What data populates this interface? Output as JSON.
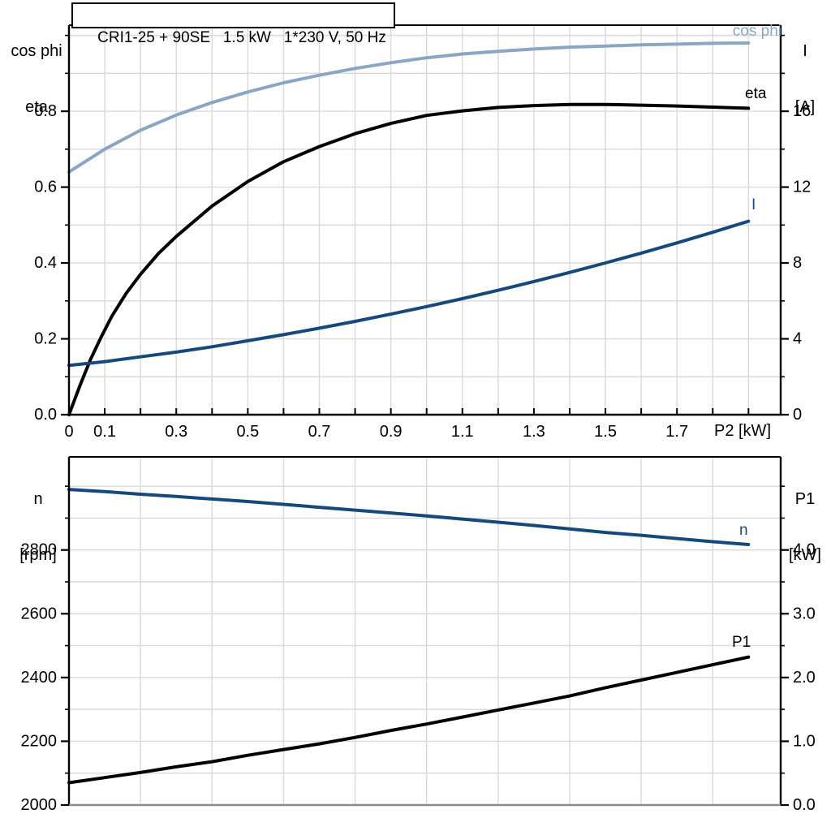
{
  "style": {
    "background": "#FFFFFF",
    "grid": "#D9D9D9",
    "axis": "#000000",
    "frame_bottom_gray": "#8D8D8D",
    "light_blue": "#8AA6C3",
    "dark_blue": "#16497B",
    "black": "#000000"
  },
  "corner_labels": {
    "c1_left": [
      "cos phi",
      "eta"
    ],
    "c1_right": [
      "I",
      "[A]"
    ],
    "c2_left": [
      "n",
      "[rpm]"
    ],
    "c2_right": [
      "P1",
      "[kW]"
    ]
  },
  "chart_data": [
    {
      "type": "line",
      "title": "CRI1-25 + 90SE   1.5 kW   1*230 V, 50 Hz",
      "x_axis": {
        "label": "P2 [kW]",
        "range": [
          0,
          1.99
        ],
        "grid_step": 0.1,
        "tick_step": 0.1,
        "ticks": {
          "values": [
            0,
            0.1,
            0.3,
            0.5,
            0.7,
            0.9,
            1.1,
            1.3,
            1.5,
            1.7
          ],
          "labels": [
            "0",
            "0.1",
            "0.3",
            "0.5",
            "0.7",
            "0.9",
            "1.1",
            "1.3",
            "1.5",
            "1.7"
          ]
        }
      },
      "y_left": {
        "label": "cos phi / eta",
        "range": [
          0,
          1.027
        ],
        "grid_step": 0.1,
        "minor_step": 0.1,
        "ticks": {
          "values": [
            0,
            0.2,
            0.4,
            0.6,
            0.8
          ],
          "labels": [
            "0.0",
            "0.2",
            "0.4",
            "0.6",
            "0.8"
          ]
        }
      },
      "y_right": {
        "label": "I [A]",
        "range": [
          0,
          20.54
        ],
        "minor_step": 2,
        "ticks": {
          "values": [
            0,
            4,
            8,
            12,
            16
          ],
          "labels": [
            "0",
            "4",
            "8",
            "12",
            "16"
          ]
        }
      },
      "series": [
        {
          "name": "cos phi",
          "axis": "left",
          "color": "#8AA6C3",
          "x": [
            0,
            0.1,
            0.2,
            0.3,
            0.4,
            0.5,
            0.6,
            0.7,
            0.8,
            0.9,
            1.0,
            1.1,
            1.2,
            1.3,
            1.4,
            1.5,
            1.6,
            1.7,
            1.8,
            1.9
          ],
          "y": [
            0.64,
            0.7,
            0.75,
            0.79,
            0.823,
            0.851,
            0.875,
            0.895,
            0.913,
            0.928,
            0.941,
            0.951,
            0.958,
            0.964,
            0.969,
            0.972,
            0.975,
            0.977,
            0.979,
            0.98
          ]
        },
        {
          "name": "eta",
          "axis": "left",
          "color": "#000000",
          "x": [
            0,
            0.03,
            0.06,
            0.09,
            0.12,
            0.16,
            0.2,
            0.25,
            0.3,
            0.4,
            0.5,
            0.6,
            0.7,
            0.8,
            0.9,
            1.0,
            1.1,
            1.2,
            1.3,
            1.4,
            1.5,
            1.6,
            1.7,
            1.8,
            1.9
          ],
          "y": [
            0,
            0.075,
            0.145,
            0.205,
            0.26,
            0.32,
            0.37,
            0.425,
            0.47,
            0.55,
            0.615,
            0.667,
            0.707,
            0.741,
            0.768,
            0.789,
            0.801,
            0.81,
            0.815,
            0.818,
            0.818,
            0.816,
            0.814,
            0.811,
            0.808
          ]
        },
        {
          "name": "I",
          "axis": "right",
          "color": "#16497B",
          "x": [
            0,
            0.1,
            0.2,
            0.3,
            0.4,
            0.5,
            0.6,
            0.7,
            0.8,
            0.9,
            1.0,
            1.1,
            1.2,
            1.3,
            1.4,
            1.5,
            1.6,
            1.7,
            1.8,
            1.9
          ],
          "y": [
            2.6,
            2.8,
            3.05,
            3.3,
            3.58,
            3.9,
            4.22,
            4.56,
            4.92,
            5.3,
            5.7,
            6.12,
            6.56,
            7.02,
            7.5,
            8.0,
            8.52,
            9.06,
            9.62,
            10.2
          ]
        }
      ]
    },
    {
      "type": "line",
      "title": "",
      "x_axis": {
        "label": "",
        "range": [
          0,
          1.99
        ],
        "grid_step": 0.2,
        "tick_step": null,
        "ticks": {
          "values": [],
          "labels": []
        }
      },
      "y_left": {
        "label": "n [rpm]",
        "range": [
          2000,
          3092
        ],
        "grid_step": 100,
        "minor_step": 100,
        "ticks": {
          "values": [
            2000,
            2200,
            2400,
            2600,
            2800
          ],
          "labels": [
            "2000",
            "2200",
            "2400",
            "2600",
            "2800"
          ]
        }
      },
      "y_right": {
        "label": "P1 [kW]",
        "range": [
          0,
          5.46
        ],
        "minor_step": 0.5,
        "ticks": {
          "values": [
            0,
            1,
            2,
            3,
            4
          ],
          "labels": [
            "0.0",
            "1.0",
            "2.0",
            "3.0",
            "4.0"
          ]
        }
      },
      "series": [
        {
          "name": "n",
          "axis": "left",
          "color": "#16497B",
          "x": [
            0,
            0.1,
            0.2,
            0.3,
            0.4,
            0.5,
            0.6,
            0.7,
            0.8,
            0.9,
            1.0,
            1.1,
            1.2,
            1.3,
            1.4,
            1.5,
            1.6,
            1.7,
            1.8,
            1.9
          ],
          "y": [
            2990,
            2983,
            2975,
            2968,
            2960,
            2952,
            2943,
            2934,
            2925,
            2916,
            2907,
            2897,
            2887,
            2877,
            2866,
            2855,
            2846,
            2836,
            2826,
            2817
          ]
        },
        {
          "name": "P1",
          "axis": "right",
          "color": "#000000",
          "x": [
            0,
            0.1,
            0.2,
            0.3,
            0.4,
            0.5,
            0.6,
            0.7,
            0.8,
            0.9,
            1.0,
            1.1,
            1.2,
            1.3,
            1.4,
            1.5,
            1.6,
            1.7,
            1.8,
            1.9
          ],
          "y": [
            0.35,
            0.43,
            0.51,
            0.6,
            0.68,
            0.78,
            0.87,
            0.96,
            1.06,
            1.17,
            1.27,
            1.38,
            1.49,
            1.6,
            1.71,
            1.84,
            1.96,
            2.08,
            2.2,
            2.32
          ]
        }
      ]
    }
  ]
}
